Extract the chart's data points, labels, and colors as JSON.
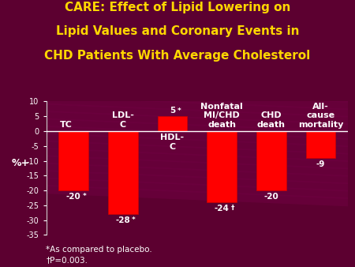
{
  "title_line1": "CARE: Effect of Lipid Lowering on",
  "title_line2": "Lipid Values and Coronary Events in",
  "title_line3": "CHD Patients With Average Cholesterol",
  "title_color": "#FFD700",
  "background_color": "#5c0030",
  "stripe_color": "#6e0040",
  "bar_color": "#FF0000",
  "bar_edge_color": "#CC0000",
  "categories": [
    "TC",
    "LDL-\nC",
    "HDL-\nC",
    "Nonfatal\nMI/CHD\ndeath",
    "CHD\ndeath",
    "All-\ncause\nmortality"
  ],
  "values": [
    -20,
    -28,
    5,
    -24,
    -20,
    -9
  ],
  "value_labels": [
    "-20",
    "-28",
    "5",
    "-24",
    "-20",
    "-9"
  ],
  "value_superscripts": [
    "*",
    "*",
    "*",
    "†",
    "",
    ""
  ],
  "ylabel": "%+",
  "ylim": [
    -35,
    10
  ],
  "yticks": [
    10,
    5,
    0,
    -5,
    -10,
    -15,
    -20,
    -25,
    -30,
    -35
  ],
  "footnote1": "*As compared to placebo.",
  "footnote2": "†P=0.003.",
  "text_color": "#FFFFFF",
  "axis_color": "#CCCCCC"
}
